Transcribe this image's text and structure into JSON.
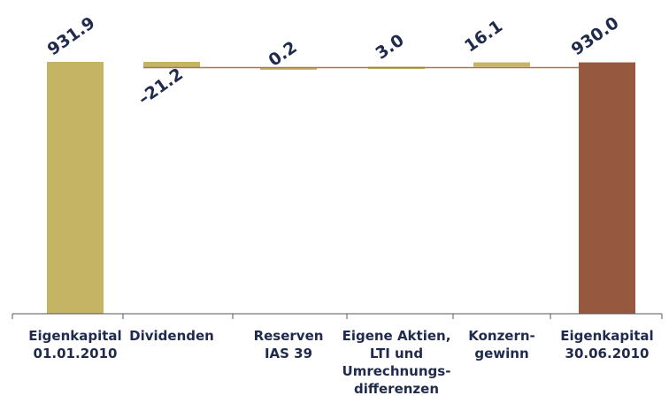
{
  "chart_data": {
    "type": "bar",
    "subtype": "waterfall",
    "categories": [
      [
        "Eigenkapital",
        "01.01.2010"
      ],
      [
        "Dividenden"
      ],
      [
        "Reserven",
        "IAS 39"
      ],
      [
        "Eigene Aktien,",
        "LTI und",
        "Umrechnungs-",
        "differenzen"
      ],
      [
        "Konzern-",
        "gewinn"
      ],
      [
        "Eigenkapital",
        "30.06.2010"
      ]
    ],
    "values": [
      931.9,
      -21.2,
      0.2,
      3.0,
      16.1,
      930.0
    ],
    "value_labels": [
      "931.9",
      "–21.2",
      "0.2",
      "3.0",
      "16.1",
      "930.0"
    ],
    "bar_kinds": [
      "total",
      "delta",
      "delta",
      "delta",
      "delta",
      "total"
    ],
    "ylim": [
      0,
      940
    ],
    "colors": {
      "bar_gold": "#c4b464",
      "bar_end": "#96583f",
      "connector": "#9b7a5e",
      "text": "#1f2a4d",
      "axis": "#555555"
    },
    "grid": false
  }
}
